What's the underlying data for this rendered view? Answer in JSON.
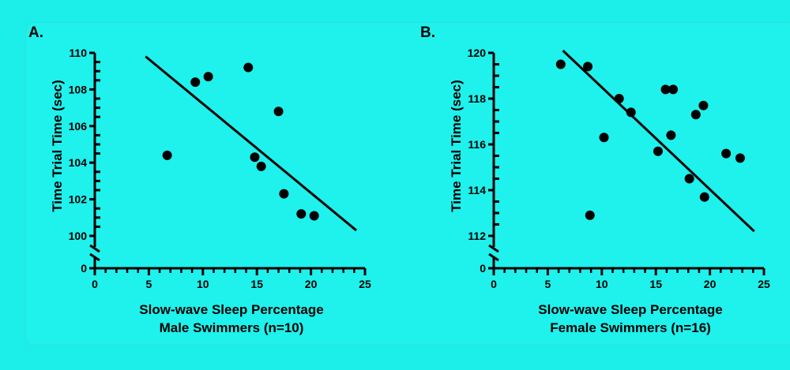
{
  "chart_data": [
    {
      "type": "scatter",
      "panel_label": "A.",
      "xlabel": "Slow-wave Sleep Percentage",
      "subtitle": "Male Swimmers (n=10)",
      "ylabel": "Time Trial Time (sec)",
      "xlim": [
        0,
        25
      ],
      "ylim": [
        100,
        110
      ],
      "y_break_zero": "0",
      "xticks": [
        "0",
        "5",
        "10",
        "15",
        "20",
        "25"
      ],
      "yticks": [
        "100",
        "102",
        "104",
        "106",
        "108",
        "110"
      ],
      "points": [
        [
          6.7,
          104.4
        ],
        [
          9.3,
          108.4
        ],
        [
          10.5,
          108.7
        ],
        [
          14.2,
          109.2
        ],
        [
          17.0,
          106.8
        ],
        [
          14.8,
          104.3
        ],
        [
          15.4,
          103.8
        ],
        [
          17.5,
          102.3
        ],
        [
          19.1,
          101.2
        ],
        [
          20.3,
          101.1
        ]
      ],
      "fit_line": [
        [
          4.7,
          109.8
        ],
        [
          24.2,
          100.3
        ]
      ]
    },
    {
      "type": "scatter",
      "panel_label": "B.",
      "xlabel": "Slow-wave Sleep Percentage",
      "subtitle": "Female  Swimmers (n=16)",
      "ylabel": "Time Trial Time (sec)",
      "xlim": [
        0,
        25
      ],
      "ylim": [
        112,
        120
      ],
      "y_break_zero": "0",
      "xticks": [
        "0",
        "5",
        "10",
        "15",
        "20",
        "25"
      ],
      "yticks": [
        "112",
        "114",
        "116",
        "118",
        "120"
      ],
      "points": [
        [
          6.2,
          119.5
        ],
        [
          8.7,
          119.4
        ],
        [
          10.2,
          116.3
        ],
        [
          8.9,
          112.9
        ],
        [
          11.6,
          118.0
        ],
        [
          12.7,
          117.4
        ],
        [
          15.2,
          115.7
        ],
        [
          15.9,
          118.4
        ],
        [
          16.6,
          118.4
        ],
        [
          16.4,
          116.4
        ],
        [
          18.7,
          117.3
        ],
        [
          19.4,
          117.7
        ],
        [
          18.1,
          114.5
        ],
        [
          19.5,
          113.7
        ],
        [
          21.5,
          115.6
        ],
        [
          22.8,
          115.4
        ]
      ],
      "fit_line": [
        [
          6.4,
          120.1
        ],
        [
          24.1,
          112.2
        ]
      ]
    }
  ],
  "colors": {
    "background": "#1ceee9",
    "ink": "#000000"
  }
}
